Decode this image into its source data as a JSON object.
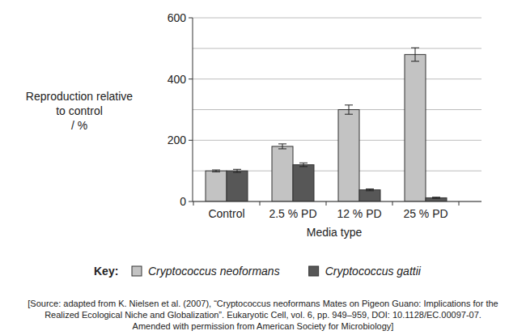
{
  "chart_data": {
    "type": "bar",
    "ylabel": [
      "Reproduction relative",
      "to control",
      "/ %"
    ],
    "xlabel": "Media type",
    "categories": [
      "Control",
      "2.5 % PD",
      "12 % PD",
      "25 % PD"
    ],
    "series": [
      {
        "name": "Cryptococcus neoformans",
        "color": "#c3c3c3",
        "values": [
          100,
          180,
          300,
          480
        ],
        "errors": [
          3,
          8,
          15,
          22
        ]
      },
      {
        "name": "Cryptococcus gattii",
        "color": "#575757",
        "values": [
          100,
          120,
          38,
          12
        ],
        "errors": [
          5,
          6,
          3,
          2
        ]
      }
    ],
    "ylim": [
      0,
      600
    ],
    "yticks": [
      0,
      200,
      400,
      600
    ],
    "grid": true,
    "legend_title": "Key:",
    "legend": "bottom",
    "source": [
      "[Source: adapted from K. Nielsen et al. (2007), “Cryptococcus neoformans Mates on Pigeon Guano: Implications for the",
      "Realized Ecological Niche and Globalization”. Eukaryotic Cell, vol. 6, pp. 949–959, DOI: 10.1128/EC.00097-07.",
      "Amended with permission from American Society for Microbiology]"
    ]
  }
}
